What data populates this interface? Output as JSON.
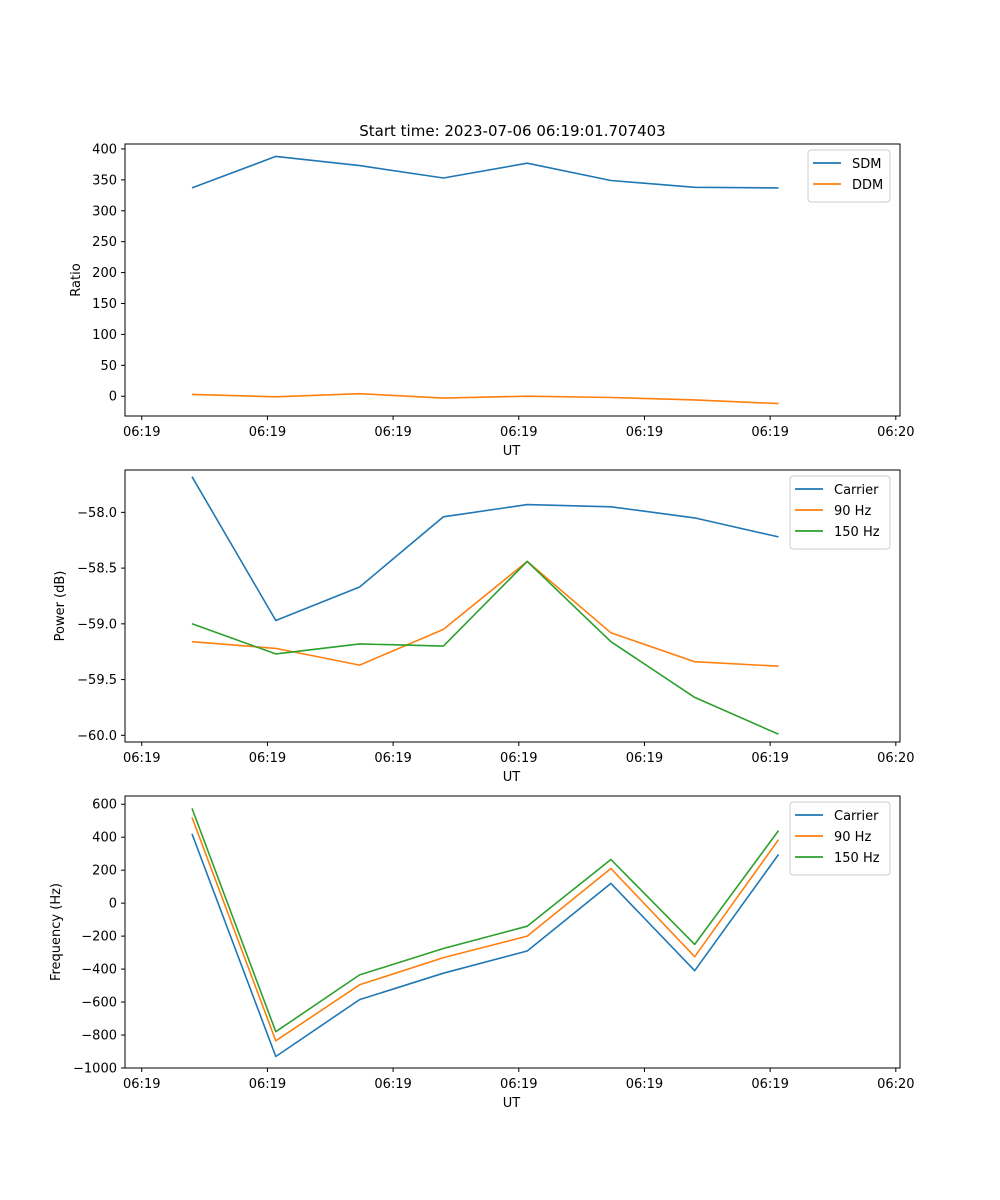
{
  "figure_title": "Start time: 2023-07-06 06:19:01.707403",
  "colors": {
    "series1": "#1f77b4",
    "series2": "#ff7f0e",
    "series3": "#2ca02c"
  },
  "chart_data": [
    {
      "type": "line",
      "title": "Start time: 2023-07-06 06:19:01.707403",
      "xlabel": "UT",
      "ylabel": "Ratio",
      "x": [
        1,
        2,
        3,
        4,
        5,
        6,
        7,
        8
      ],
      "xlim": [
        0.2,
        9.45
      ],
      "x_ticks": [
        0.4,
        1.9,
        3.4,
        4.9,
        6.4,
        7.9,
        9.4
      ],
      "x_tick_labels": [
        "06:19",
        "06:19",
        "06:19",
        "06:19",
        "06:19",
        "06:19",
        "06:20"
      ],
      "ylim": [
        -32,
        408
      ],
      "y_ticks": [
        0,
        50,
        100,
        150,
        200,
        250,
        300,
        350,
        400
      ],
      "y_tick_labels": [
        "0",
        "50",
        "100",
        "150",
        "200",
        "250",
        "300",
        "350",
        "400"
      ],
      "legend_position": "top-right",
      "series": [
        {
          "name": "SDM",
          "color": "#1f77b4",
          "values": [
            337,
            388,
            373,
            353,
            377,
            349,
            338,
            337
          ]
        },
        {
          "name": "DDM",
          "color": "#ff7f0e",
          "values": [
            3,
            -1,
            4,
            -3,
            0,
            -2,
            -6,
            -12
          ]
        }
      ]
    },
    {
      "type": "line",
      "title": "",
      "xlabel": "UT",
      "ylabel": "Power (dB)",
      "x": [
        1,
        2,
        3,
        4,
        5,
        6,
        7,
        8
      ],
      "xlim": [
        0.2,
        9.45
      ],
      "x_ticks": [
        0.4,
        1.9,
        3.4,
        4.9,
        6.4,
        7.9,
        9.4
      ],
      "x_tick_labels": [
        "06:19",
        "06:19",
        "06:19",
        "06:19",
        "06:19",
        "06:19",
        "06:20"
      ],
      "ylim": [
        -60.06,
        -57.62
      ],
      "y_ticks": [
        -60.0,
        -59.5,
        -59.0,
        -58.5,
        -58.0
      ],
      "y_tick_labels": [
        "−60.0",
        "−59.5",
        "−59.0",
        "−58.5",
        "−58.0"
      ],
      "legend_position": "top-right",
      "series": [
        {
          "name": "Carrier",
          "color": "#1f77b4",
          "values": [
            -57.68,
            -58.97,
            -58.67,
            -58.04,
            -57.93,
            -57.95,
            -58.05,
            -58.22
          ]
        },
        {
          "name": "90 Hz",
          "color": "#ff7f0e",
          "values": [
            -59.16,
            -59.22,
            -59.37,
            -59.05,
            -58.44,
            -59.08,
            -59.34,
            -59.38
          ]
        },
        {
          "name": "150 Hz",
          "color": "#2ca02c",
          "values": [
            -59.0,
            -59.27,
            -59.18,
            -59.2,
            -58.44,
            -59.16,
            -59.66,
            -59.99
          ]
        }
      ]
    },
    {
      "type": "line",
      "title": "",
      "xlabel": "UT",
      "ylabel": "Frequency (Hz)",
      "x": [
        1,
        2,
        3,
        4,
        5,
        6,
        7,
        8
      ],
      "xlim": [
        0.2,
        9.45
      ],
      "x_ticks": [
        0.4,
        1.9,
        3.4,
        4.9,
        6.4,
        7.9,
        9.4
      ],
      "x_tick_labels": [
        "06:19",
        "06:19",
        "06:19",
        "06:19",
        "06:19",
        "06:19",
        "06:20"
      ],
      "ylim": [
        -1000,
        650
      ],
      "y_ticks": [
        -1000,
        -800,
        -600,
        -400,
        -200,
        0,
        200,
        400,
        600
      ],
      "y_tick_labels": [
        "−1000",
        "−800",
        "−600",
        "−400",
        "−200",
        "0",
        "200",
        "400",
        "600"
      ],
      "legend_position": "top-right",
      "series": [
        {
          "name": "Carrier",
          "color": "#1f77b4",
          "values": [
            420,
            -930,
            -585,
            -425,
            -290,
            120,
            -410,
            295
          ]
        },
        {
          "name": "90 Hz",
          "color": "#ff7f0e",
          "values": [
            520,
            -835,
            -495,
            -330,
            -200,
            210,
            -325,
            385
          ]
        },
        {
          "name": "150 Hz",
          "color": "#2ca02c",
          "values": [
            575,
            -780,
            -435,
            -275,
            -140,
            265,
            -250,
            440
          ]
        }
      ]
    }
  ]
}
